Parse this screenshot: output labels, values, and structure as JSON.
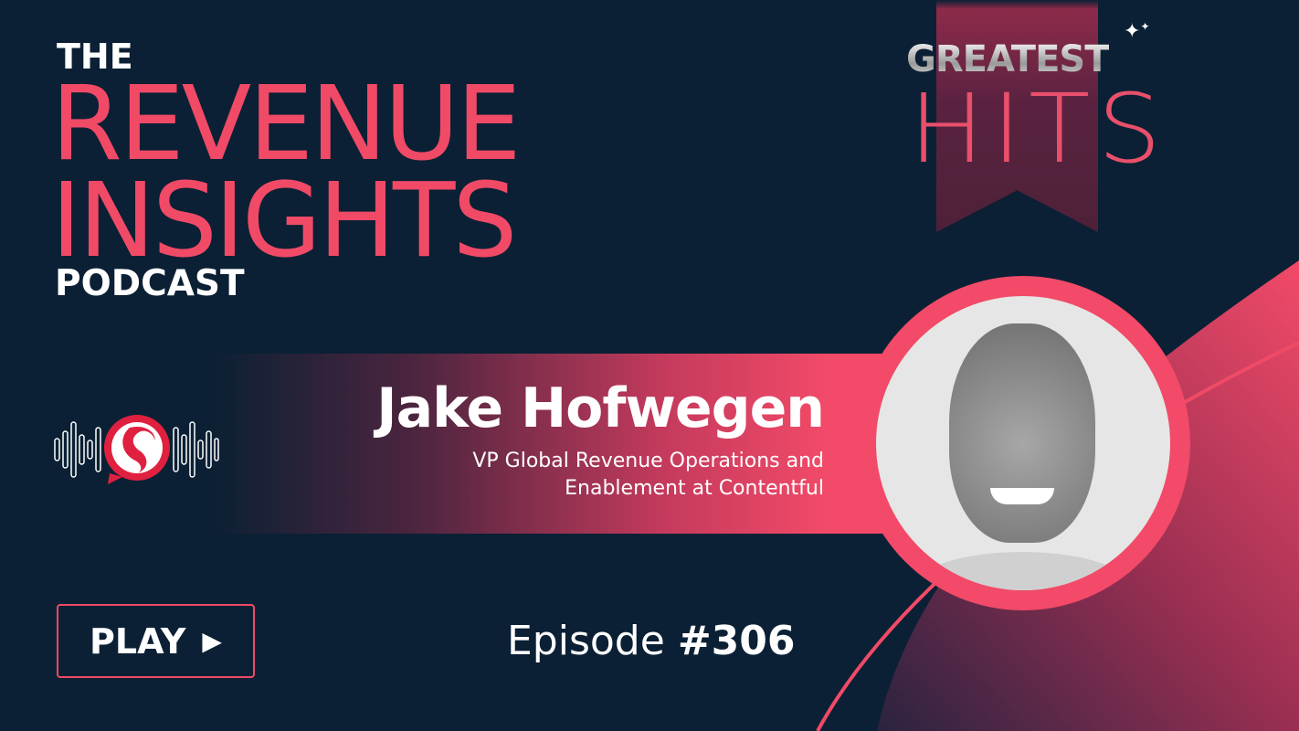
{
  "podcast": {
    "line1": "THE",
    "line2": "REVENUE",
    "line3": "INSIGHTS",
    "line4": "PODCAST"
  },
  "badge": {
    "top": "GREATEST",
    "bottom": "HITS",
    "icon": "sparkle-icon"
  },
  "guest": {
    "name": "Jake Hofwegen",
    "role_line1": "VP Global Revenue Operations and",
    "role_line2": "Enablement at Contentful"
  },
  "play": {
    "label": "PLAY",
    "icon": "play-triangle-icon",
    "icon_glyph": "▶"
  },
  "episode": {
    "label": "Episode",
    "number": "#306"
  },
  "colors": {
    "background": "#0b2034",
    "accent": "#f04a67",
    "ribbon": "#5a2240"
  }
}
